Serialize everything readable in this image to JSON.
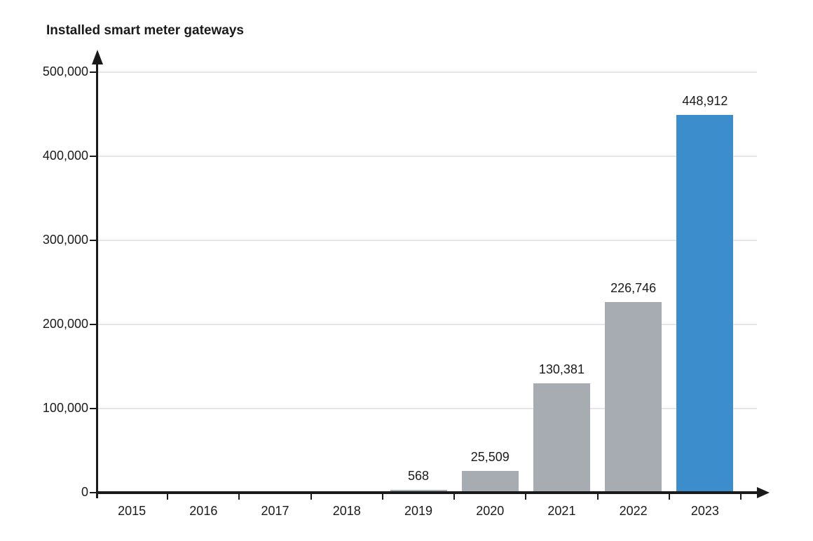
{
  "chart_data": {
    "type": "bar",
    "title": "Installed smart meter gateways",
    "xlabel": "",
    "ylabel": "",
    "categories": [
      "2015",
      "2016",
      "2017",
      "2018",
      "2019",
      "2020",
      "2021",
      "2022",
      "2023"
    ],
    "values": [
      null,
      null,
      null,
      null,
      568,
      25509,
      130381,
      226746,
      448912
    ],
    "value_labels": [
      null,
      null,
      null,
      null,
      "568",
      "25,509",
      "130,381",
      "226,746",
      "448,912"
    ],
    "ylim": [
      0,
      500000
    ],
    "y_ticks": [
      0,
      100000,
      200000,
      300000,
      400000,
      500000
    ],
    "y_tick_labels": [
      "0",
      "100,000",
      "200,000",
      "300,000",
      "400,000",
      "500,000"
    ],
    "grid": "horizontal",
    "legend": "none",
    "highlight_index": 8,
    "colors": {
      "bar_default": "#A6ACB2",
      "bar_highlight": "#3C8DCB",
      "axis": "#1A1A1A",
      "gridline": "#E4E7EA",
      "text": "#1A1A1A"
    }
  }
}
